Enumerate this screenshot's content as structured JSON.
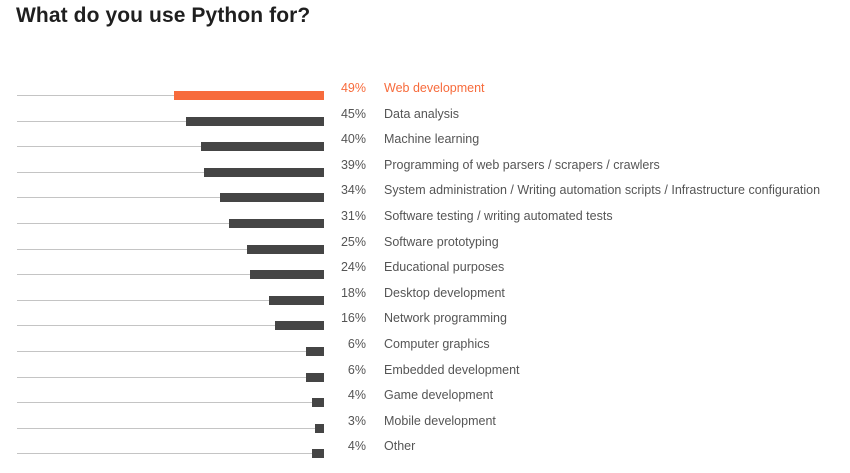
{
  "title": "What do you use Python for?",
  "colors": {
    "highlight": "#f76b3c",
    "bar": "#454545",
    "track": "#c4c4c4",
    "text": "#555555"
  },
  "chart_data": {
    "type": "bar",
    "orientation": "horizontal",
    "title": "What do you use Python for?",
    "xlabel": "",
    "ylabel": "",
    "xlim": [
      0,
      50
    ],
    "unit": "%",
    "highlighted_category": "Web development",
    "categories": [
      "Web development",
      "Data analysis",
      "Machine learning",
      "Programming of web parsers / scrapers / crawlers",
      "System administration / Writing automation scripts / Infrastructure configuration",
      "Software testing / writing automated tests",
      "Software prototyping",
      "Educational purposes",
      "Desktop development",
      "Network programming",
      "Computer graphics",
      "Embedded development",
      "Game development",
      "Mobile development",
      "Other"
    ],
    "values": [
      49,
      45,
      40,
      39,
      34,
      31,
      25,
      24,
      18,
      16,
      6,
      6,
      4,
      3,
      4
    ],
    "value_labels": [
      "49%",
      "45%",
      "40%",
      "39%",
      "34%",
      "31%",
      "25%",
      "24%",
      "18%",
      "16%",
      "6%",
      "6%",
      "4%",
      "3%",
      "4%"
    ]
  }
}
